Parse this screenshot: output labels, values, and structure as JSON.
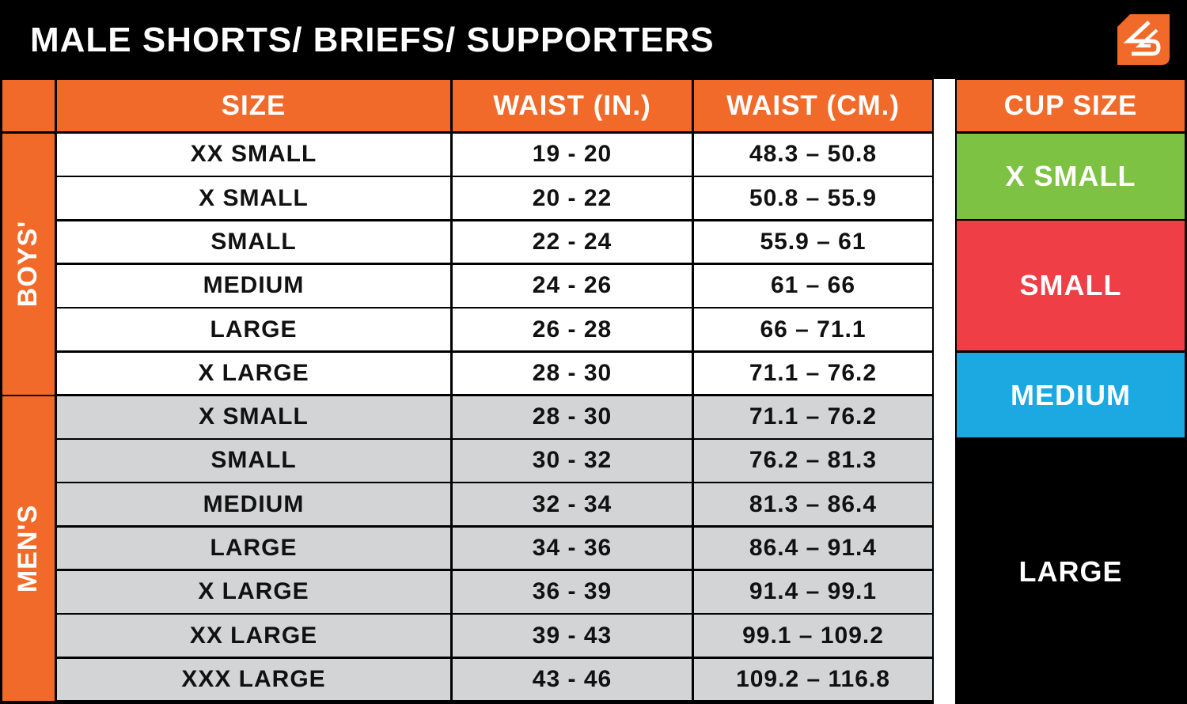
{
  "title": "MALE SHORTS/ BRIEFS/ SUPPORTERS",
  "logo_icon": "brand-logo-icon",
  "colors": {
    "orange": "#f26a2a",
    "green": "#7dc242",
    "red": "#ef3e45",
    "blue": "#1ca8e0",
    "men_row": "#d3d4d6"
  },
  "headers": {
    "size": "SIZE",
    "waist_in": "WAIST (IN.)",
    "waist_cm": "WAIST (CM.)",
    "cup": "CUP SIZE"
  },
  "groups": [
    {
      "label": "BOYS'",
      "rows": [
        [
          "XX SMALL",
          "19 - 20",
          "48.3 – 50.8"
        ],
        [
          "X SMALL",
          "20 - 22",
          "50.8 – 55.9"
        ],
        [
          "SMALL",
          "22 - 24",
          "55.9 – 61"
        ],
        [
          "MEDIUM",
          "24 - 26",
          "61 – 66"
        ],
        [
          "LARGE",
          "26 - 28",
          "66 – 71.1"
        ],
        [
          "X LARGE",
          "28 - 30",
          "71.1 – 76.2"
        ]
      ]
    },
    {
      "label": "MEN'S",
      "rows": [
        [
          "X SMALL",
          "28 - 30",
          "71.1 – 76.2"
        ],
        [
          "SMALL",
          "30 - 32",
          "76.2 – 81.3"
        ],
        [
          "MEDIUM",
          "32 - 34",
          "81.3 – 86.4"
        ],
        [
          "LARGE",
          "34 - 36",
          "86.4 – 91.4"
        ],
        [
          "X LARGE",
          "36 - 39",
          "91.4 – 99.1"
        ],
        [
          "XX LARGE",
          "39 - 43",
          "99.1 – 109.2"
        ],
        [
          "XXX LARGE",
          "43 - 46",
          "109.2 – 116.8"
        ]
      ]
    }
  ],
  "cup_sizes": [
    {
      "label": "X SMALL",
      "color": "#7dc242"
    },
    {
      "label": "SMALL",
      "color": "#ef3e45"
    },
    {
      "label": "MEDIUM",
      "color": "#1ca8e0"
    },
    {
      "label": "LARGE",
      "color": "#000000"
    }
  ]
}
